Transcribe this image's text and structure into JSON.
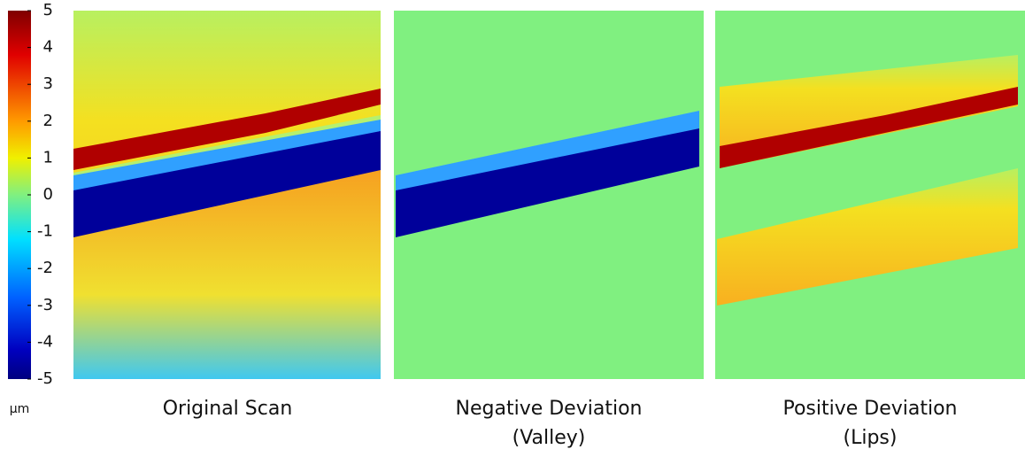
{
  "colorbar": {
    "range": [
      -5,
      5
    ],
    "ticks": [
      5,
      4,
      3,
      2,
      1,
      0,
      -1,
      -2,
      -3,
      -4,
      -5
    ],
    "unit": "μm"
  },
  "panels": [
    {
      "caption": [
        "Original Scan"
      ]
    },
    {
      "caption": [
        "Negative Deviation",
        "(Valley)"
      ]
    },
    {
      "caption": [
        "Positive Deviation",
        "(Lips)"
      ]
    }
  ]
}
